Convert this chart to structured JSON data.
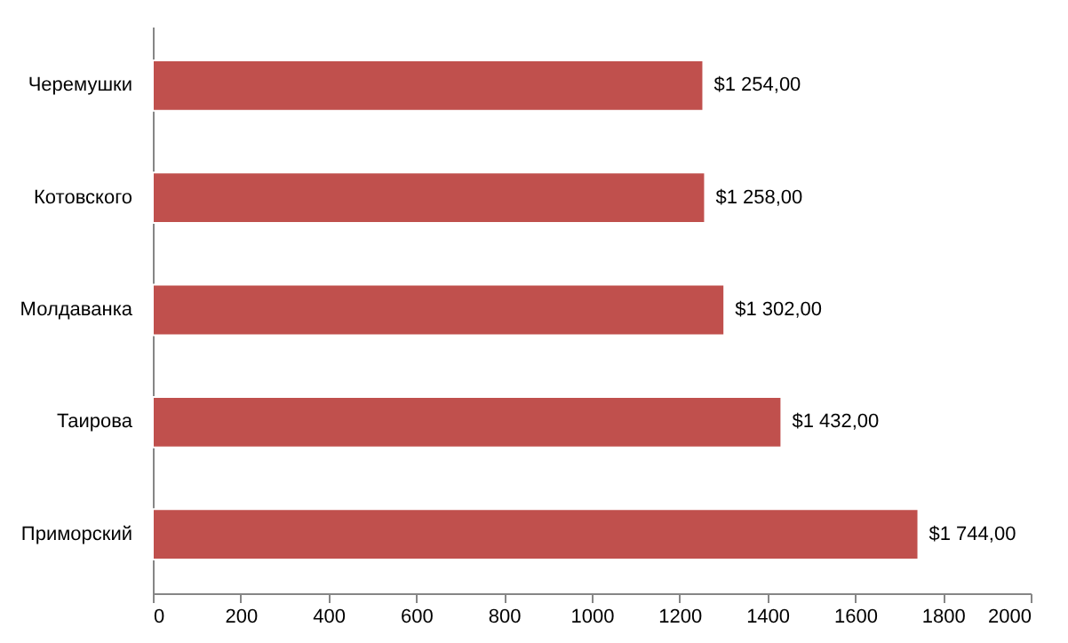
{
  "chart_data": {
    "type": "bar",
    "orientation": "horizontal",
    "categories": [
      "Черемушки",
      "Котовского",
      "Молдаванка",
      "Таирова",
      "Приморский"
    ],
    "values": [
      1254,
      1258,
      1302,
      1432,
      1744
    ],
    "value_labels": [
      "$1 254,00",
      "$1 258,00",
      "$1 302,00",
      "$1 432,00",
      "$1 744,00"
    ],
    "color": "#c0504d",
    "xlim": [
      0,
      2000
    ],
    "xticks": [
      0,
      200,
      400,
      600,
      800,
      1000,
      1200,
      1400,
      1600,
      1800,
      2000
    ],
    "grid": false,
    "legend": false
  }
}
